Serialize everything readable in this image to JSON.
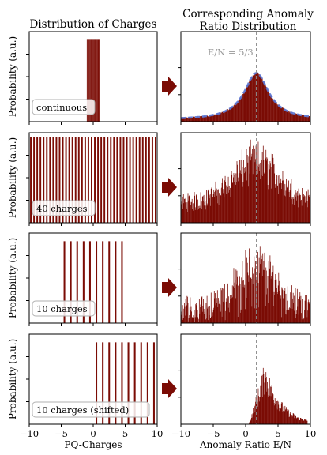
{
  "colors": {
    "bar": "#7b0c05",
    "fit": "#5b78d6",
    "arrow": "#7b0c05",
    "marker": "#8a8a8a",
    "axis": "#000000"
  },
  "headers": {
    "left": "Distribution of Charges",
    "right_line1": "Corresponding Anomaly",
    "right_line2": "Ratio Distribution"
  },
  "left_ylabel": "Probability (a.u.)",
  "annotation": "E/N = 5/3",
  "chart_data": [
    {
      "type": "bar",
      "panel": "charges",
      "row": 0,
      "label": "continuous",
      "xlim": [
        -10,
        10
      ],
      "xticks": [
        -10,
        -5,
        0,
        5,
        10
      ],
      "xticklabels": [
        "",
        "",
        "",
        "",
        ""
      ],
      "ylim": [
        0,
        1.1
      ],
      "x_start": -1,
      "x_end": 1,
      "bin_width": 0.1,
      "value": 1.0
    },
    {
      "type": "bar",
      "panel": "anomaly",
      "row": 0,
      "xlim": [
        -10,
        10
      ],
      "xticks": [
        -10,
        -5,
        0,
        5,
        10
      ],
      "xticklabels": [
        "",
        "",
        "",
        "",
        ""
      ],
      "ylim": [
        0,
        1.0
      ],
      "marker_x": 1.6667,
      "shape": "lorentzian",
      "center": 1.6667,
      "width": 4.6,
      "height": 0.52,
      "base": 0.02,
      "noise": 0.02,
      "fit_line": true,
      "xmin_data": -10,
      "xmax_data": 10
    },
    {
      "type": "bar",
      "panel": "charges",
      "row": 1,
      "label": "40 charges",
      "xlim": [
        -10,
        10
      ],
      "xticks": [
        -10,
        -5,
        0,
        5,
        10
      ],
      "xticklabels": [
        "",
        "",
        "",
        "",
        ""
      ],
      "ylim": [
        0,
        1.05
      ],
      "charges": [
        -9.75,
        -9.25,
        -8.75,
        -8.25,
        -7.75,
        -7.25,
        -6.75,
        -6.25,
        -5.75,
        -5.25,
        -4.75,
        -4.25,
        -3.75,
        -3.25,
        -2.75,
        -2.25,
        -1.75,
        -1.25,
        -0.75,
        -0.25,
        0.25,
        0.75,
        1.25,
        1.75,
        2.25,
        2.75,
        3.25,
        3.75,
        4.25,
        4.75,
        5.25,
        5.75,
        6.25,
        6.75,
        7.25,
        7.75,
        8.25,
        8.75,
        9.25,
        9.75
      ],
      "bar_width": 0.24,
      "value": 1.0
    },
    {
      "type": "bar",
      "panel": "anomaly",
      "row": 1,
      "xlim": [
        -10,
        10
      ],
      "xticks": [
        -10,
        -5,
        0,
        5,
        10
      ],
      "xticklabels": [
        "",
        "",
        "",
        "",
        ""
      ],
      "ylim": [
        0,
        1.0
      ],
      "marker_x": 1.6667,
      "shape": "noisy",
      "center": 1.6667,
      "width": 9,
      "height": 0.52,
      "base": 0.22,
      "noise": 0.22,
      "xmin_data": -10,
      "xmax_data": 10
    },
    {
      "type": "bar",
      "panel": "charges",
      "row": 2,
      "label": "10 charges",
      "xlim": [
        -10,
        10
      ],
      "xticks": [
        -10,
        -5,
        0,
        5,
        10
      ],
      "xticklabels": [
        "",
        "",
        "",
        "",
        ""
      ],
      "ylim": [
        0,
        1.1
      ],
      "charges": [
        -4.5,
        -3.5,
        -2.5,
        -1.5,
        -0.5,
        0.5,
        1.5,
        2.5,
        3.5,
        4.5
      ],
      "bar_width": 0.25,
      "value": 1.0
    },
    {
      "type": "bar",
      "panel": "anomaly",
      "row": 2,
      "xlim": [
        -10,
        10
      ],
      "xticks": [
        -10,
        -5,
        0,
        5,
        10
      ],
      "xticklabels": [
        "",
        "",
        "",
        "",
        ""
      ],
      "ylim": [
        0,
        1.0
      ],
      "marker_x": 1.6667,
      "shape": "noisy",
      "center": 1.6667,
      "width": 8,
      "height": 0.55,
      "base": 0.15,
      "noise": 0.3,
      "sparse": true,
      "xmin_data": -10,
      "xmax_data": 10
    },
    {
      "type": "bar",
      "panel": "charges",
      "row": 3,
      "label": "10 charges (shifted)",
      "xlim": [
        -10,
        10
      ],
      "xticks": [
        -10,
        -5,
        0,
        5,
        10
      ],
      "xticklabels": [
        "−10",
        "−5",
        "0",
        "5",
        "10"
      ],
      "xlabel": "PQ-Charges",
      "ylim": [
        0,
        1.1
      ],
      "charges": [
        0.5,
        1.5,
        2.5,
        3.5,
        4.5,
        5.5,
        6.5,
        7.5,
        8.5,
        9.5
      ],
      "bar_width": 0.25,
      "value": 1.0
    },
    {
      "type": "bar",
      "panel": "anomaly",
      "row": 3,
      "xlim": [
        -10,
        10
      ],
      "xticks": [
        -10,
        -5,
        0,
        5,
        10
      ],
      "xticklabels": [
        "−10",
        "−5",
        "0",
        "5",
        "10"
      ],
      "xlabel": "Anomaly Ratio E/N",
      "ylim": [
        0,
        1.0
      ],
      "marker_x": 1.6667,
      "shape": "skewed",
      "center": 3.0,
      "width": 2.5,
      "height": 0.62,
      "base": 0.0,
      "noise": 0.14,
      "xmin_data": 0.5,
      "xmax_data": 9.5
    }
  ]
}
